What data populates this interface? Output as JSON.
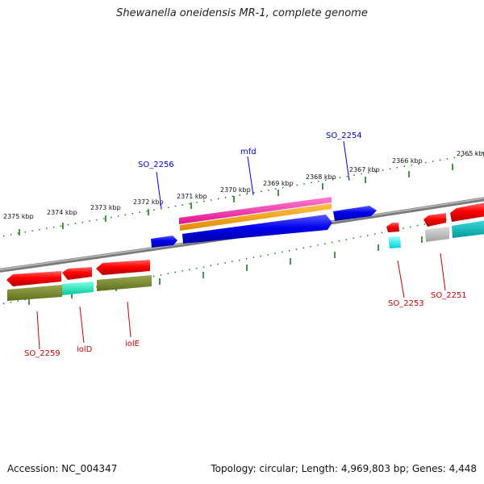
{
  "title": "Shewanella oneidensis MR-1, complete genome",
  "footer": {
    "accession": "Accession: NC_004347",
    "summary": "Topology: circular; Length: 4,969,803 bp; Genes: 4,448"
  },
  "colors": {
    "backbone": "#808080",
    "ticks": "#1a7a1a",
    "label_forward": "#0000cc",
    "label_reverse": "#cc0000"
  },
  "scale_labels": [
    "2365 kbp",
    "2366 kbp",
    "2367 kbp",
    "2368 kbp",
    "2369 kbp",
    "2370 kbp",
    "2371 kbp",
    "2372 kbp",
    "2373 kbp",
    "2374 kbp",
    "2375 kbp"
  ],
  "gene_labels": {
    "so2256": "SO_2256",
    "mfd": "mfd",
    "so2254": "SO_2254",
    "so2253": "SO_2253",
    "so2251": "SO_2251",
    "so2259": "SO_2259",
    "iold": "iolD",
    "iole": "iolE"
  }
}
